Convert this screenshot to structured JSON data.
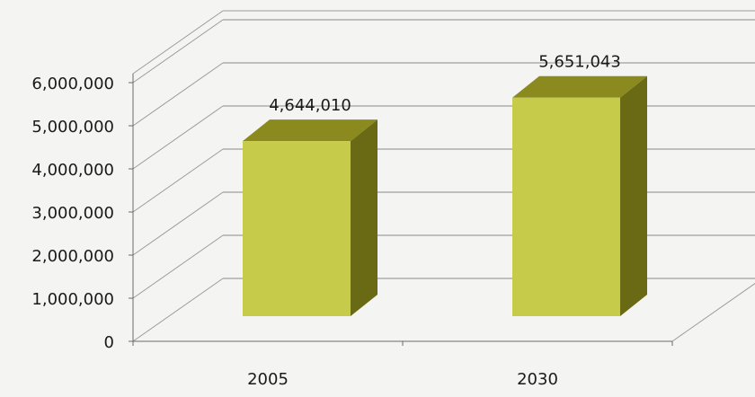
{
  "chart_data": {
    "type": "bar",
    "title": "",
    "xlabel": "",
    "ylabel": "",
    "categories": [
      "2005",
      "2030"
    ],
    "values": [
      4644010,
      5651043
    ],
    "data_labels": [
      "4,644,010",
      "5,651,043"
    ],
    "ylim": [
      0,
      6000000
    ],
    "yticks": [
      0,
      1000000,
      2000000,
      3000000,
      4000000,
      5000000,
      6000000
    ],
    "ytick_labels": [
      "0",
      "1,000,000",
      "2,000,000",
      "3,000,000",
      "4,000,000",
      "5,000,000",
      "6,000,000"
    ],
    "grid": true,
    "legend": "none",
    "style": "3d",
    "colors": {
      "front": "#c6cc4a",
      "side": "#6a6a14",
      "top": "#8a8a1e"
    }
  }
}
